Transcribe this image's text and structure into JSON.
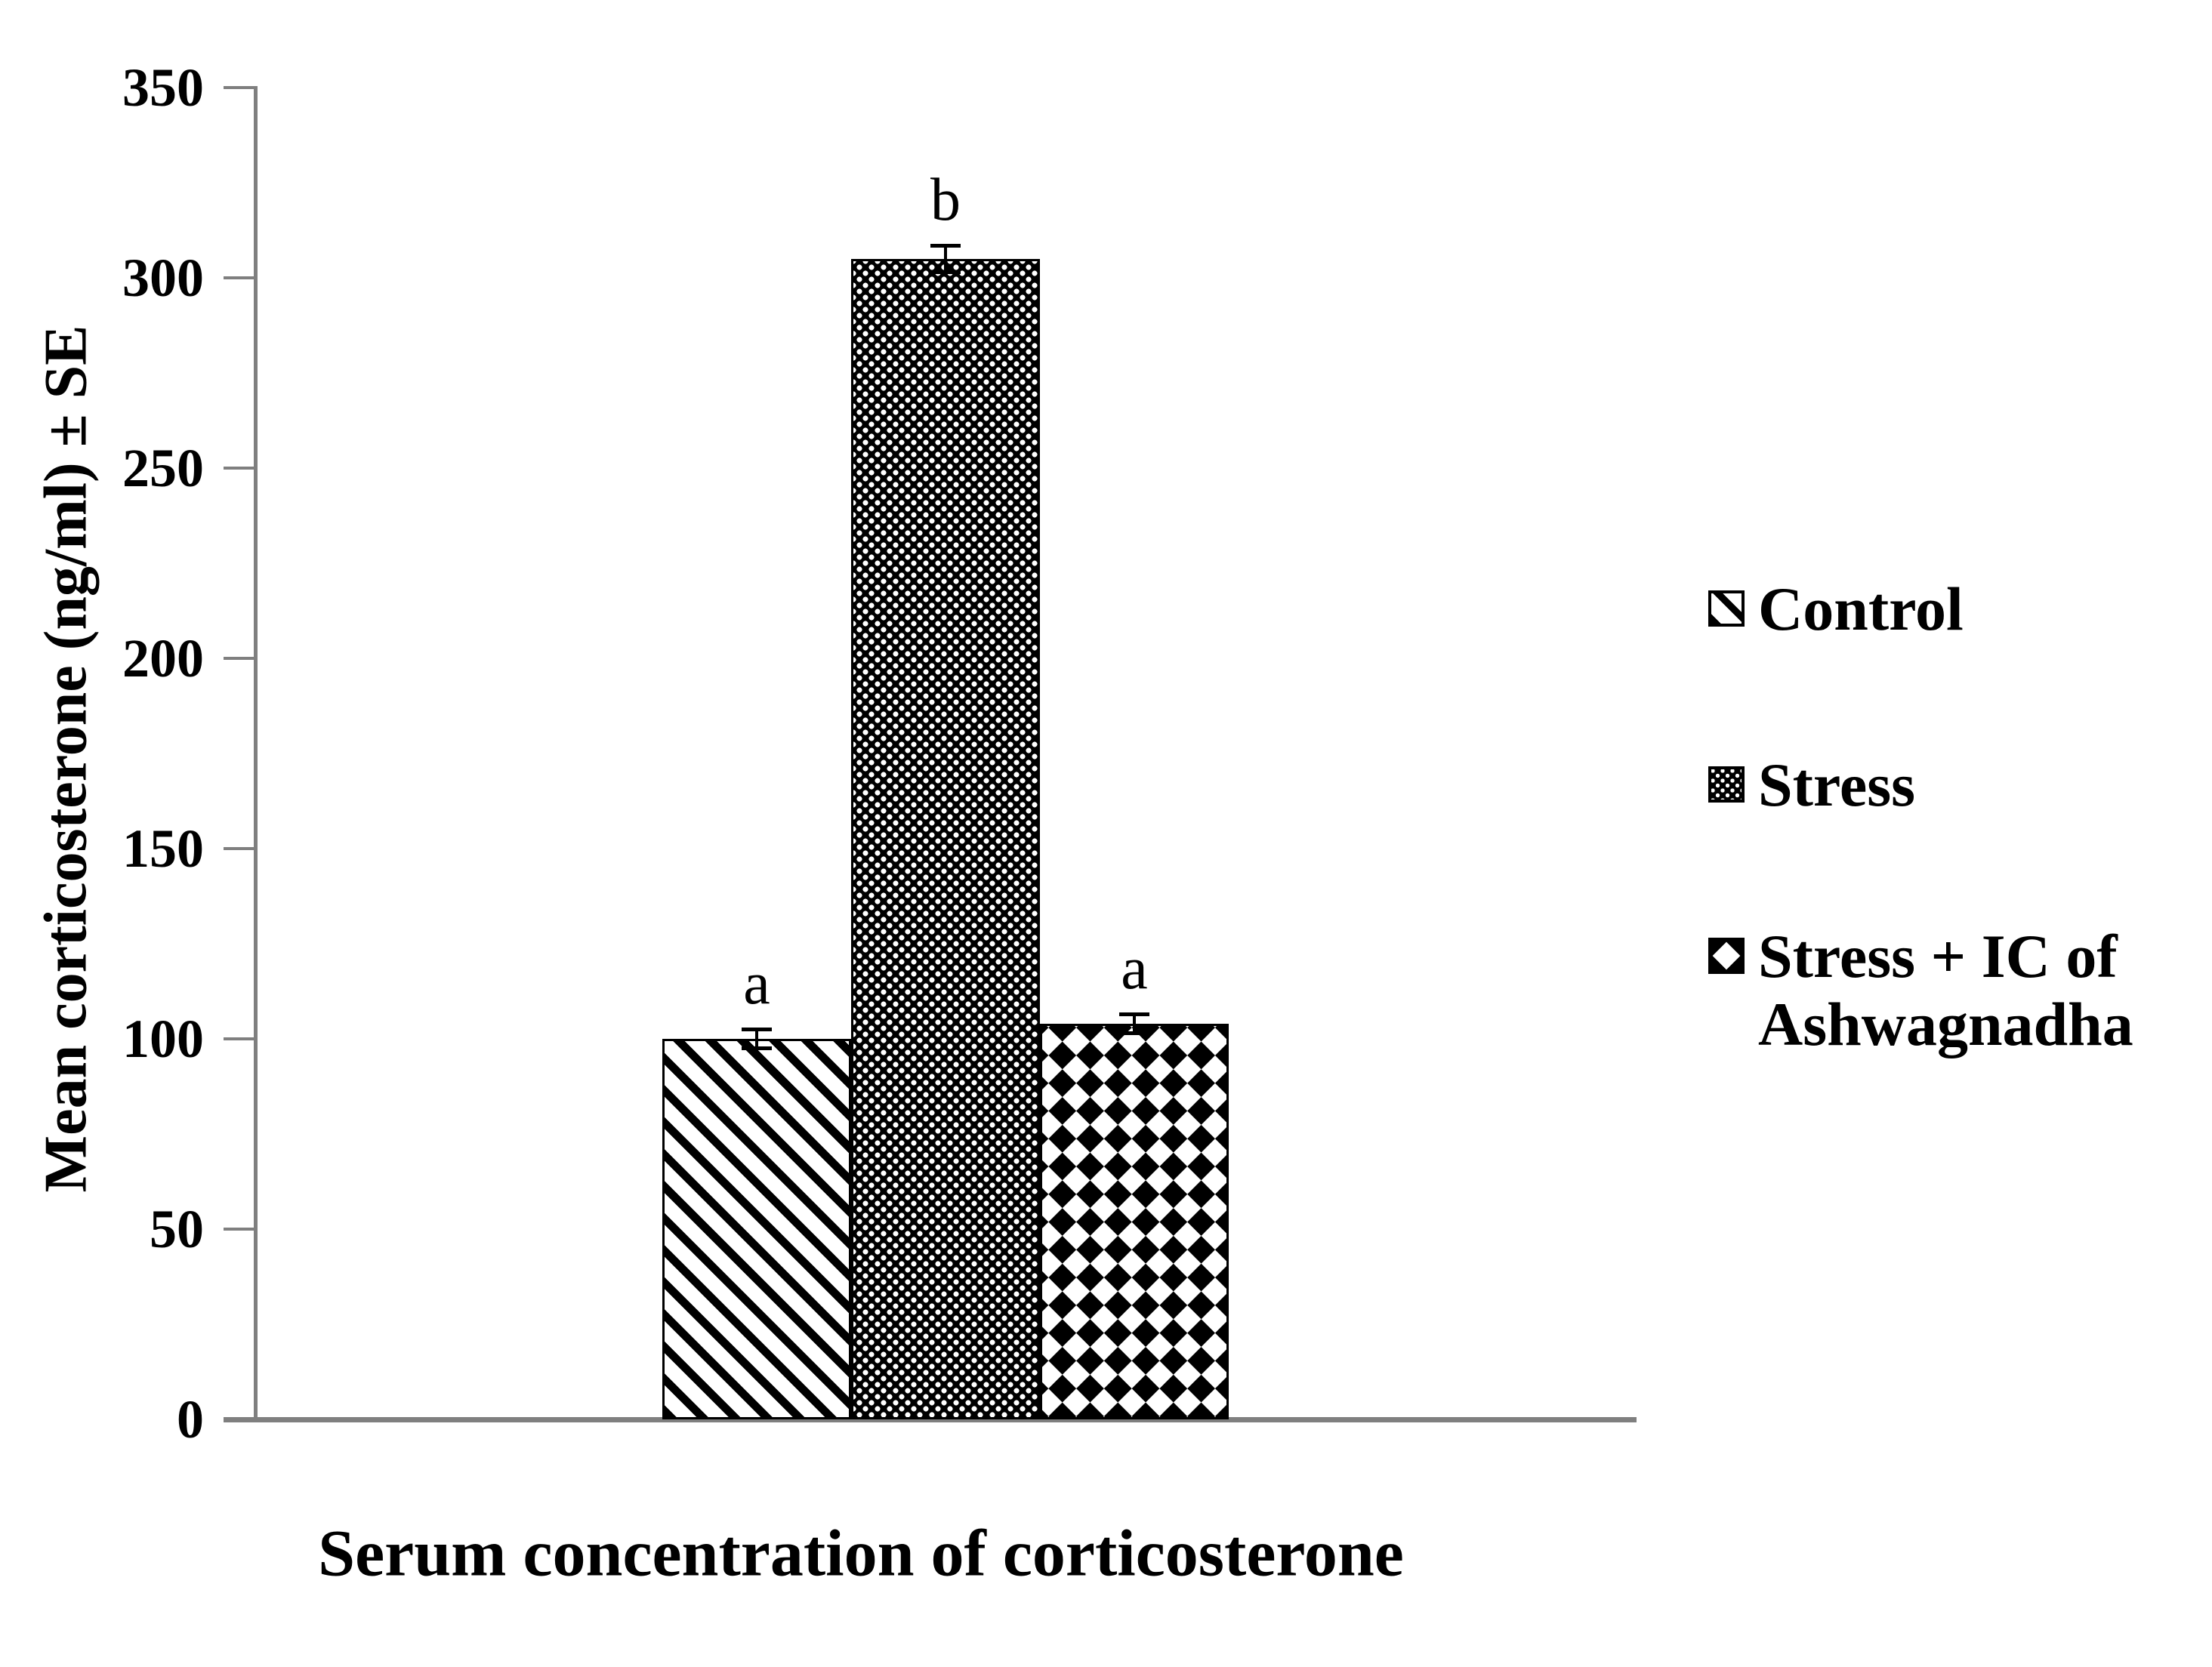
{
  "chart_data": {
    "type": "bar",
    "title": "",
    "xlabel": "Serum concentration of corticosterone",
    "ylabel": "Mean corticosterone (ng/ml) ± SE",
    "categories": [
      "Control",
      "Stress",
      "Stress + IC of Ashwagnadha"
    ],
    "values": [
      100,
      305,
      104
    ],
    "se": [
      3,
      4,
      3
    ],
    "sig_labels": [
      "a",
      "b",
      "a"
    ],
    "ylim": [
      0,
      350
    ],
    "yticks": [
      0,
      50,
      100,
      150,
      200,
      250,
      300,
      350
    ],
    "grid": false,
    "legend_position": "right",
    "bar_patterns": [
      "black-diagonal-stripes-on-white",
      "white-dots-on-black",
      "black-diamonds-on-white"
    ]
  },
  "legend": {
    "items": [
      {
        "label": "Control",
        "pattern": "diagonal-stripes"
      },
      {
        "label": "Stress",
        "pattern": "dots"
      },
      {
        "label": "Stress + IC of Ashwagnadha",
        "pattern": "diamonds"
      }
    ]
  },
  "colors": {
    "foreground": "#000000",
    "background": "#ffffff",
    "axis": "#7f7f7f"
  }
}
